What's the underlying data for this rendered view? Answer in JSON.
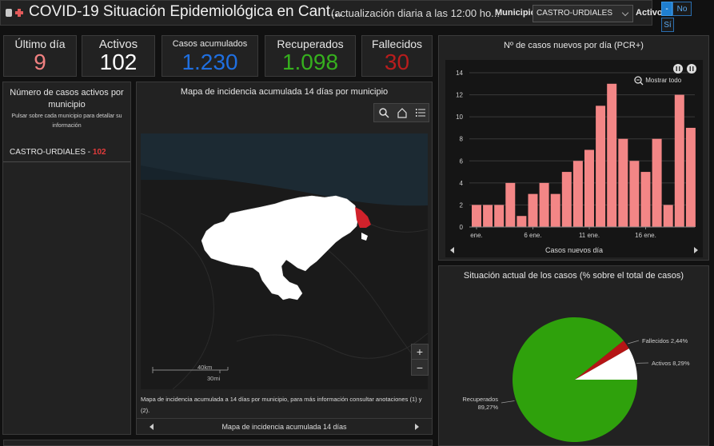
{
  "header": {
    "title": "COVID-19 Situación Epidemiológica en Cant...",
    "subtitle": "(actualización diaria a las 12:00 ho...",
    "municipio_label": "Municipio",
    "municipio_value": "CASTRO-URDIALES",
    "activo_label": "Activo",
    "toggle": {
      "dash": "-",
      "no": "No",
      "si": "Sí"
    }
  },
  "kpis": [
    {
      "label": "Último día",
      "value": "9",
      "color": "#f08080"
    },
    {
      "label": "Activos",
      "value": "102",
      "color": "#ffffff"
    },
    {
      "label": "Casos acumulados",
      "value": "1.230",
      "color": "#1f6fe0"
    },
    {
      "label": "Recuperados",
      "value": "1.098",
      "color": "#36b01e"
    },
    {
      "label": "Fallecidos",
      "value": "30",
      "color": "#b81d1d"
    }
  ],
  "left_panel": {
    "title": "Número de casos activos por municipio",
    "subtitle": "Pulsar sobre cada municipio para detallar su información",
    "item_name": "CASTRO-URDIALES",
    "item_sep": " - ",
    "item_value": "102"
  },
  "map": {
    "title": "Mapa de incidencia acumulada 14 días por municipio",
    "scale_km": "40km",
    "scale_mi": "30mi",
    "caption": "Mapa de incidencia acumulada a 14 días por municipio, para más información consultar anotaciones (1) y (2).",
    "footer": "Mapa de incidencia acumulada 14 días",
    "zoom_in": "+",
    "zoom_out": "−",
    "icons": [
      "search-icon",
      "home-icon",
      "list-icon"
    ]
  },
  "bar_chart": {
    "title": "Nº de casos nuevos por día (PCR+)",
    "show_all": "Mostrar todo",
    "footer": "Casos nuevos día"
  },
  "pie_chart": {
    "title": "Situación actual de los casos (% sobre el total de casos)"
  },
  "chart_data": [
    {
      "type": "bar",
      "title": "Nº de casos nuevos por día (PCR+)",
      "xlabel": "Casos nuevos día",
      "ylabel": "",
      "ylim": [
        0,
        14
      ],
      "yticks": [
        0,
        2,
        4,
        6,
        8,
        10,
        12,
        14
      ],
      "tick_labels": [
        {
          "index": 0,
          "label": "ene."
        },
        {
          "index": 5,
          "label": "6 ene."
        },
        {
          "index": 10,
          "label": "11 ene."
        },
        {
          "index": 15,
          "label": "16 ene."
        }
      ],
      "values": [
        2,
        2,
        2,
        4,
        1,
        3,
        4,
        3,
        5,
        6,
        7,
        11,
        13,
        8,
        6,
        5,
        8,
        2,
        12,
        9
      ],
      "color": "#f38686",
      "grid": true
    },
    {
      "type": "pie",
      "slices": [
        {
          "label": "Recuperados",
          "value": "89,27%",
          "pct": 89.27,
          "color": "#2fa10c"
        },
        {
          "label": "Fallecidos",
          "value": "2,44%",
          "pct": 2.44,
          "color": "#b51515"
        },
        {
          "label": "Activos",
          "value": "8,29%",
          "pct": 8.29,
          "color": "#ffffff"
        }
      ]
    }
  ]
}
